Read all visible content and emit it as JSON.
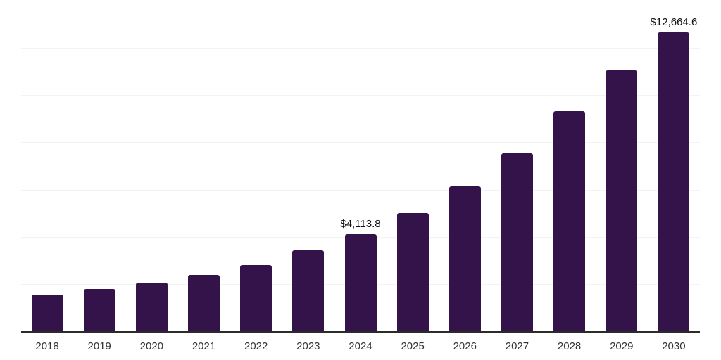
{
  "chart_data": {
    "type": "bar",
    "title": "",
    "xlabel": "",
    "ylabel": "",
    "categories": [
      "2018",
      "2019",
      "2020",
      "2021",
      "2022",
      "2023",
      "2024",
      "2025",
      "2026",
      "2027",
      "2028",
      "2029",
      "2030"
    ],
    "values": [
      1550,
      1790,
      2060,
      2390,
      2805,
      3430,
      4113.8,
      5015,
      6150,
      7550,
      9315,
      11045,
      12664.6
    ],
    "point_labels": [
      "",
      "",
      "",
      "",
      "",
      "",
      "$4,113.8",
      "",
      "",
      "",
      "",
      "",
      "$12,664.6"
    ],
    "ylim": [
      0,
      14000
    ],
    "grid_step": 2000,
    "grid": true,
    "legend": false,
    "colors": {
      "bar": "#34124a",
      "gridline": "#f3f3f5",
      "axis_line": "#2b2b2b",
      "tick_label": "#333333",
      "data_label": "#111111",
      "background": "#ffffff"
    }
  }
}
